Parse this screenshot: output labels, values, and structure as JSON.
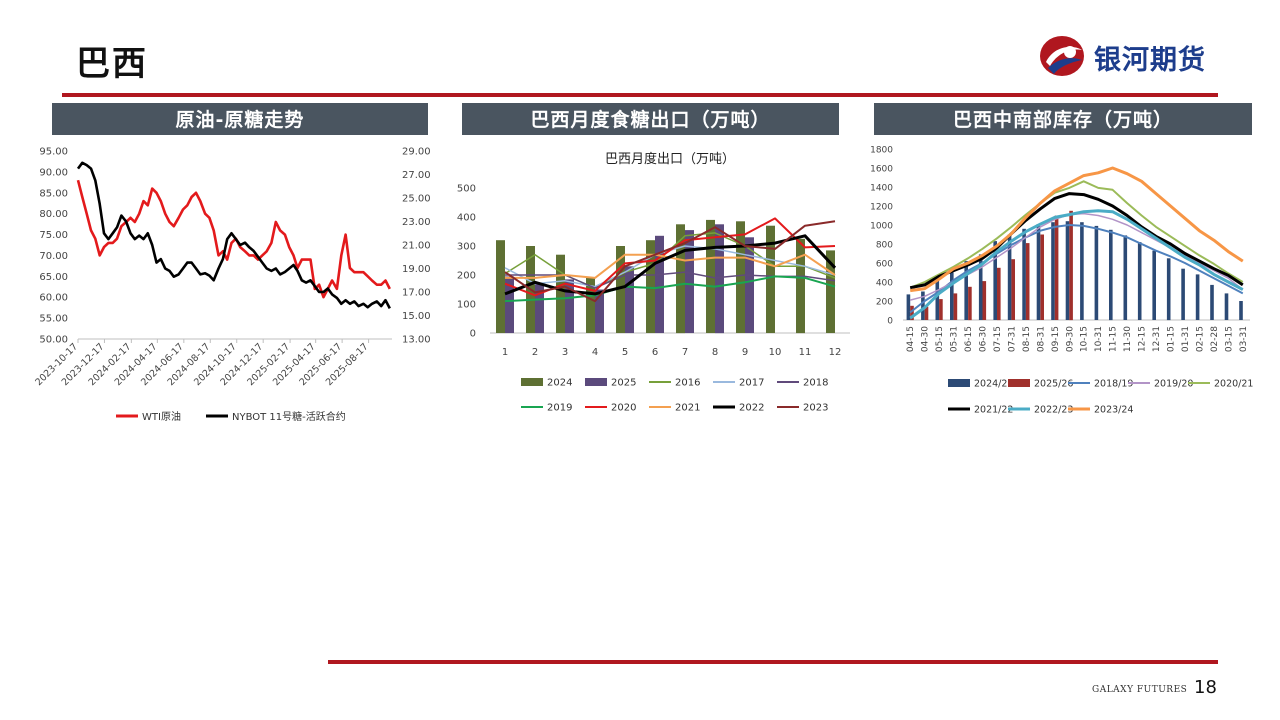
{
  "page": {
    "title": "巴西",
    "brand": "银河期货",
    "footer_brand": "GALAXY FUTURES",
    "page_number": "18"
  },
  "colors": {
    "accent_red": "#b0171f",
    "header_bg": "#4a5560",
    "brand_blue": "#1d3d8c"
  },
  "panels": [
    {
      "header": "原油-原糖走势"
    },
    {
      "header": "巴西月度食糖出口（万吨）"
    },
    {
      "header": "巴西中南部库存（万吨）"
    }
  ],
  "chart_data": [
    {
      "type": "line",
      "title": "",
      "x_ticks": [
        "2023-10-17",
        "2023-12-17",
        "2024-02-17",
        "2024-04-17",
        "2024-06-17",
        "2024-08-17",
        "2024-10-17",
        "2024-12-17",
        "2025-02-17",
        "2025-04-17",
        "2025-06-17",
        "2025-08-17"
      ],
      "x_range": [
        "2023-10-17",
        "2025-10-10"
      ],
      "y_left": {
        "ticks": [
          "50.00",
          "55.00",
          "60.00",
          "65.00",
          "70.00",
          "75.00",
          "80.00",
          "85.00",
          "90.00",
          "95.00"
        ],
        "ylim": [
          50,
          95
        ]
      },
      "y_right": {
        "ticks": [
          "13.00",
          "15.00",
          "17.00",
          "19.00",
          "21.00",
          "23.00",
          "25.00",
          "27.00",
          "29.00"
        ],
        "ylim": [
          13,
          29
        ]
      },
      "legend_position": "bottom",
      "series": [
        {
          "name": "WTI原油",
          "axis": "left",
          "color": "#e31a1c",
          "x": [
            "2023-10-17",
            "2023-10-27",
            "2023-11-06",
            "2023-11-16",
            "2023-11-26",
            "2023-12-06",
            "2023-12-16",
            "2023-12-26",
            "2024-01-05",
            "2024-01-15",
            "2024-01-25",
            "2024-02-05",
            "2024-02-15",
            "2024-02-25",
            "2024-03-06",
            "2024-03-16",
            "2024-03-26",
            "2024-04-05",
            "2024-04-15",
            "2024-04-25",
            "2024-05-05",
            "2024-05-15",
            "2024-05-25",
            "2024-06-05",
            "2024-06-15",
            "2024-06-25",
            "2024-07-05",
            "2024-07-15",
            "2024-07-25",
            "2024-08-05",
            "2024-08-15",
            "2024-08-25",
            "2024-09-05",
            "2024-09-15",
            "2024-09-25",
            "2024-10-05",
            "2024-10-15",
            "2024-10-25",
            "2024-11-05",
            "2024-11-15",
            "2024-11-25",
            "2024-12-05",
            "2024-12-15",
            "2024-12-25",
            "2025-01-05",
            "2025-01-15",
            "2025-01-25",
            "2025-02-05",
            "2025-02-15",
            "2025-02-25",
            "2025-03-06",
            "2025-03-16",
            "2025-03-26",
            "2025-04-05",
            "2025-04-15",
            "2025-04-25",
            "2025-05-05",
            "2025-05-15",
            "2025-05-25",
            "2025-06-05",
            "2025-06-15",
            "2025-06-25",
            "2025-07-05",
            "2025-07-15",
            "2025-07-25",
            "2025-08-05",
            "2025-08-15",
            "2025-08-25",
            "2025-09-05",
            "2025-09-15",
            "2025-09-25",
            "2025-10-05"
          ],
          "values": [
            88,
            84,
            80,
            76,
            74,
            70,
            72,
            73,
            73,
            74,
            77,
            78,
            79,
            78,
            80,
            83,
            82,
            86,
            85,
            83,
            80,
            78,
            77,
            79,
            81,
            82,
            84,
            85,
            83,
            80,
            79,
            76,
            70,
            71,
            69,
            73,
            74,
            72,
            71,
            70,
            70,
            69,
            70,
            71,
            73,
            78,
            76,
            75,
            72,
            70,
            67,
            69,
            69,
            69,
            62,
            63,
            60,
            62,
            64,
            62,
            70,
            75,
            67,
            66,
            66,
            66,
            65,
            64,
            63,
            63,
            64,
            62
          ]
        },
        {
          "name": "NYBOT 11号糖-活跃合约",
          "axis": "right",
          "color": "#000000",
          "x": [
            "2023-10-17",
            "2023-10-27",
            "2023-11-06",
            "2023-11-16",
            "2023-11-26",
            "2023-12-06",
            "2023-12-16",
            "2023-12-26",
            "2024-01-05",
            "2024-01-15",
            "2024-01-25",
            "2024-02-05",
            "2024-02-15",
            "2024-02-25",
            "2024-03-06",
            "2024-03-16",
            "2024-03-26",
            "2024-04-05",
            "2024-04-15",
            "2024-04-25",
            "2024-05-05",
            "2024-05-15",
            "2024-05-25",
            "2024-06-05",
            "2024-06-15",
            "2024-06-25",
            "2024-07-05",
            "2024-07-15",
            "2024-07-25",
            "2024-08-05",
            "2024-08-15",
            "2024-08-25",
            "2024-09-05",
            "2024-09-15",
            "2024-09-25",
            "2024-10-05",
            "2024-10-15",
            "2024-10-25",
            "2024-11-05",
            "2024-11-15",
            "2024-11-25",
            "2024-12-05",
            "2024-12-15",
            "2024-12-25",
            "2025-01-05",
            "2025-01-15",
            "2025-01-25",
            "2025-02-05",
            "2025-02-15",
            "2025-02-25",
            "2025-03-06",
            "2025-03-16",
            "2025-03-26",
            "2025-04-05",
            "2025-04-15",
            "2025-04-25",
            "2025-05-05",
            "2025-05-15",
            "2025-05-25",
            "2025-06-05",
            "2025-06-15",
            "2025-06-25",
            "2025-07-05",
            "2025-07-15",
            "2025-07-25",
            "2025-08-05",
            "2025-08-15",
            "2025-08-25",
            "2025-09-05",
            "2025-09-15",
            "2025-09-25",
            "2025-10-05"
          ],
          "values": [
            27.5,
            28.0,
            27.8,
            27.5,
            26.5,
            24.5,
            22.0,
            21.5,
            22.0,
            22.5,
            23.5,
            23.0,
            22.0,
            21.5,
            21.8,
            21.5,
            22.0,
            21.0,
            19.5,
            19.8,
            19.0,
            18.8,
            18.3,
            18.5,
            19.0,
            19.5,
            19.5,
            19.0,
            18.5,
            18.6,
            18.4,
            18.0,
            19.0,
            19.8,
            21.5,
            22.0,
            21.5,
            21.0,
            21.2,
            20.8,
            20.5,
            20.0,
            19.5,
            19.0,
            18.8,
            19.0,
            18.5,
            18.7,
            19.0,
            19.3,
            18.8,
            18.0,
            17.8,
            18.0,
            17.5,
            17.0,
            17.0,
            17.3,
            16.8,
            16.5,
            16.0,
            16.3,
            16.0,
            16.2,
            15.8,
            16.0,
            15.7,
            16.0,
            16.2,
            15.8,
            16.3,
            15.6
          ]
        }
      ]
    },
    {
      "type": "bar",
      "title": "巴西月度出口（万吨）",
      "categories": [
        "1",
        "2",
        "3",
        "4",
        "5",
        "6",
        "7",
        "8",
        "9",
        "10",
        "11",
        "12"
      ],
      "y_ticks": [
        "0",
        "100",
        "200",
        "300",
        "400",
        "500"
      ],
      "ylim": [
        0,
        500
      ],
      "legend_position": "bottom",
      "bar_series": [
        {
          "name": "2024",
          "color": "#5e7033",
          "values": [
            320,
            300,
            270,
            190,
            300,
            320,
            375,
            390,
            385,
            370,
            325,
            285
          ]
        },
        {
          "name": "2025",
          "color": "#5b4a7c",
          "values": [
            195,
            170,
            185,
            150,
            230,
            335,
            355,
            375,
            330,
            null,
            null,
            null
          ]
        }
      ],
      "line_series": [
        {
          "name": "2016",
          "color": "#77a03a",
          "width": 1.5,
          "values": [
            205,
            270,
            200,
            155,
            210,
            240,
            335,
            345,
            300,
            230,
            230,
            190
          ]
        },
        {
          "name": "2017",
          "color": "#9ab9de",
          "width": 1.5,
          "values": [
            225,
            170,
            180,
            160,
            210,
            270,
            300,
            290,
            270,
            250,
            230,
            200
          ]
        },
        {
          "name": "2018",
          "color": "#604a7b",
          "width": 1.5,
          "values": [
            200,
            200,
            200,
            155,
            200,
            200,
            210,
            190,
            200,
            195,
            195,
            180
          ]
        },
        {
          "name": "2019",
          "color": "#19a551",
          "width": 2,
          "values": [
            110,
            115,
            120,
            130,
            160,
            155,
            170,
            160,
            175,
            195,
            190,
            160
          ]
        },
        {
          "name": "2020",
          "color": "#e31a1c",
          "width": 2,
          "values": [
            170,
            130,
            170,
            145,
            240,
            250,
            320,
            330,
            340,
            395,
            295,
            300
          ]
        },
        {
          "name": "2021",
          "color": "#f4a050",
          "width": 2,
          "values": [
            190,
            190,
            200,
            190,
            270,
            270,
            250,
            260,
            260,
            230,
            270,
            200
          ]
        },
        {
          "name": "2022",
          "color": "#000000",
          "width": 3,
          "values": [
            135,
            175,
            145,
            135,
            160,
            240,
            285,
            295,
            300,
            310,
            335,
            225
          ]
        },
        {
          "name": "2023",
          "color": "#8a2a2a",
          "width": 2,
          "values": [
            210,
            140,
            160,
            110,
            230,
            270,
            310,
            365,
            300,
            290,
            370,
            385
          ]
        }
      ]
    },
    {
      "type": "bar",
      "title": "",
      "categories": [
        "04-15",
        "04-30",
        "05-15",
        "05-31",
        "06-15",
        "06-30",
        "07-15",
        "07-31",
        "08-15",
        "08-31",
        "09-15",
        "09-30",
        "10-15",
        "10-31",
        "11-15",
        "11-30",
        "12-15",
        "12-31",
        "01-15",
        "01-31",
        "02-15",
        "02-28",
        "03-15",
        "03-31"
      ],
      "y_ticks": [
        "0",
        "200",
        "400",
        "600",
        "800",
        "1000",
        "1200",
        "1400",
        "1600",
        "1800"
      ],
      "ylim": [
        0,
        1800
      ],
      "legend_position": "bottom",
      "bar_series": [
        {
          "name": "2024/25",
          "color": "#2c4a75",
          "values": [
            270,
            300,
            420,
            500,
            620,
            690,
            830,
            900,
            960,
            1010,
            1030,
            1040,
            1030,
            990,
            950,
            890,
            820,
            730,
            650,
            540,
            480,
            370,
            280,
            200
          ]
        },
        {
          "name": "2025/26",
          "color": "#a0302c",
          "values": [
            150,
            140,
            220,
            280,
            350,
            410,
            550,
            640,
            810,
            900,
            1100,
            1150,
            null,
            null,
            null,
            null,
            null,
            null,
            null,
            null,
            null,
            null,
            null,
            null
          ]
        }
      ],
      "line_series": [
        {
          "name": "2018/19",
          "color": "#4f81bd",
          "width": 2,
          "values": [
            80,
            200,
            300,
            420,
            520,
            600,
            700,
            790,
            870,
            940,
            980,
            1000,
            990,
            960,
            920,
            870,
            800,
            730,
            670,
            600,
            520,
            440,
            360,
            280
          ]
        },
        {
          "name": "2019/20",
          "color": "#b294c7",
          "width": 1.5,
          "values": [
            210,
            250,
            320,
            400,
            480,
            560,
            660,
            760,
            870,
            980,
            1060,
            1110,
            1120,
            1100,
            1060,
            1000,
            920,
            840,
            760,
            680,
            600,
            520,
            440,
            320
          ]
        },
        {
          "name": "2020/21",
          "color": "#9bbb59",
          "width": 2,
          "values": [
            340,
            400,
            480,
            560,
            650,
            750,
            860,
            980,
            1110,
            1230,
            1340,
            1390,
            1460,
            1390,
            1370,
            1230,
            1100,
            980,
            880,
            780,
            680,
            590,
            490,
            400
          ]
        },
        {
          "name": "2021/22",
          "color": "#000000",
          "width": 3,
          "values": [
            340,
            370,
            460,
            520,
            580,
            650,
            760,
            910,
            1050,
            1170,
            1280,
            1330,
            1320,
            1270,
            1200,
            1100,
            980,
            880,
            800,
            700,
            620,
            540,
            470,
            370
          ]
        },
        {
          "name": "2022/23",
          "color": "#4bacc6",
          "width": 3,
          "values": [
            20,
            130,
            280,
            390,
            490,
            590,
            720,
            830,
            930,
            1010,
            1080,
            1110,
            1140,
            1150,
            1140,
            1060,
            960,
            860,
            760,
            660,
            580,
            480,
            400,
            320
          ]
        },
        {
          "name": "2023/24",
          "color": "#f79646",
          "width": 3,
          "values": [
            310,
            330,
            430,
            540,
            600,
            680,
            780,
            910,
            1080,
            1230,
            1360,
            1440,
            1520,
            1550,
            1600,
            1540,
            1460,
            1330,
            1200,
            1070,
            940,
            840,
            720,
            620
          ]
        }
      ]
    }
  ]
}
